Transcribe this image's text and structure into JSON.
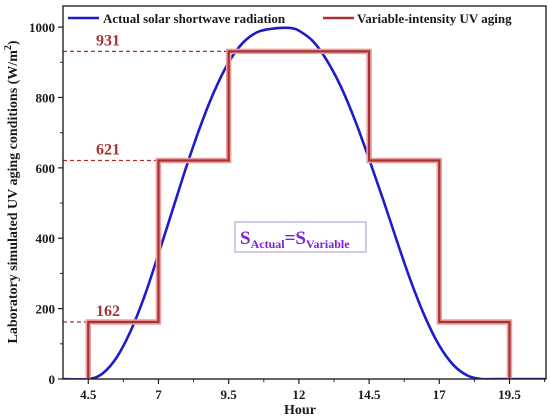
{
  "chart_data": {
    "type": "line",
    "xlabel": "Hour",
    "ylabel": "Laboratory simulated UV aging conditions (W/m²)",
    "xlim": [
      3.6,
      20.8
    ],
    "ylim": [
      0,
      1060
    ],
    "x_ticks": [
      {
        "value": 4.5,
        "label": "4.5"
      },
      {
        "value": 7,
        "label": "7"
      },
      {
        "value": 9.5,
        "label": "9.5"
      },
      {
        "value": 12,
        "label": "12"
      },
      {
        "value": 14.5,
        "label": "14.5"
      },
      {
        "value": 17,
        "label": "17"
      },
      {
        "value": 19.5,
        "label": "19.5"
      }
    ],
    "y_ticks": [
      0,
      200,
      400,
      600,
      800,
      1000
    ],
    "legend_position": "top",
    "grid": false,
    "series": [
      {
        "name": "Actual solar shortwave radiation",
        "color": "#1c1cc8",
        "kind": "curve",
        "x": [
          3.6,
          4.5,
          5.0,
          5.5,
          6.0,
          6.5,
          7.0,
          7.5,
          8.0,
          8.5,
          9.0,
          9.5,
          10.0,
          10.5,
          11.0,
          11.5,
          11.75,
          12.0,
          12.5,
          13.0,
          13.5,
          14.0,
          14.5,
          15.0,
          15.5,
          16.0,
          16.5,
          17.0,
          17.5,
          18.0,
          18.5,
          19.0,
          19.5,
          20.8
        ],
        "y": [
          0,
          0,
          15,
          60,
          135,
          235,
          355,
          480,
          605,
          720,
          820,
          900,
          955,
          985,
          995,
          998,
          997,
          990,
          960,
          905,
          830,
          735,
          625,
          510,
          390,
          275,
          175,
          95,
          40,
          10,
          0,
          0,
          0,
          0
        ]
      },
      {
        "name": "Variable-intensity  UV aging",
        "color": "#a83232",
        "kind": "step",
        "x": [
          4.5,
          4.5,
          7,
          7,
          9.5,
          9.5,
          14.5,
          14.5,
          17,
          17,
          19.5,
          19.5
        ],
        "y": [
          0,
          162,
          162,
          621,
          621,
          931,
          931,
          621,
          621,
          162,
          162,
          0
        ]
      }
    ],
    "reference_lines": [
      {
        "value": 931,
        "label": "931"
      },
      {
        "value": 621,
        "label": "621"
      },
      {
        "value": 162,
        "label": "162"
      }
    ],
    "annotation": {
      "main_1": "S",
      "sub_1": "Actual",
      "equals": "=",
      "main_2": "S",
      "sub_2": "Variable",
      "color": "#7b1fd8"
    }
  }
}
